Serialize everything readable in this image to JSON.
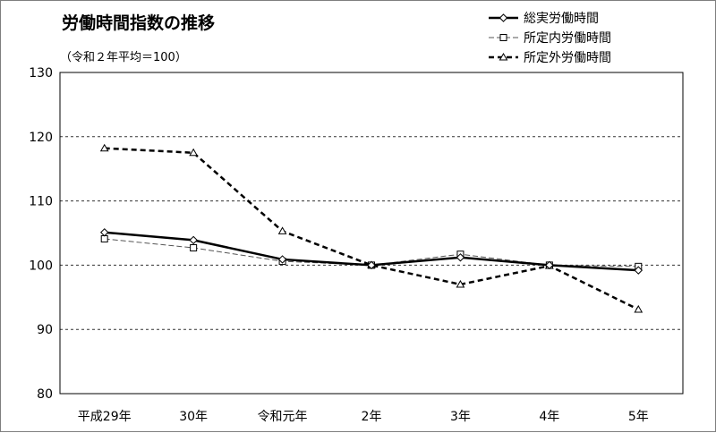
{
  "chart_data": {
    "type": "line",
    "title": "労働時間指数の推移",
    "subtitle": "（令和２年平均＝100）",
    "xlabel": "",
    "ylabel": "",
    "ylim": [
      80,
      130
    ],
    "yticks": [
      80,
      90,
      100,
      110,
      120,
      130
    ],
    "categories": [
      "平成29年",
      "30年",
      "令和元年",
      "2年",
      "3年",
      "4年",
      "5年"
    ],
    "grid": "horizontal dashed",
    "legend_position": "top-right",
    "series": [
      {
        "name": "総実労働時間",
        "values": [
          105.1,
          103.9,
          100.9,
          100.0,
          101.2,
          100.0,
          99.2
        ],
        "color": "#000000",
        "line": "solid-thick",
        "marker": "diamond"
      },
      {
        "name": "所定内労働時間",
        "values": [
          104.1,
          102.7,
          100.6,
          100.0,
          101.7,
          100.0,
          99.8
        ],
        "color": "#555555",
        "line": "dashed-thin",
        "marker": "square"
      },
      {
        "name": "所定外労働時間",
        "values": [
          118.2,
          117.5,
          105.3,
          100.0,
          97.0,
          99.9,
          93.1
        ],
        "color": "#000000",
        "line": "dashed-thick",
        "marker": "triangle"
      }
    ]
  }
}
